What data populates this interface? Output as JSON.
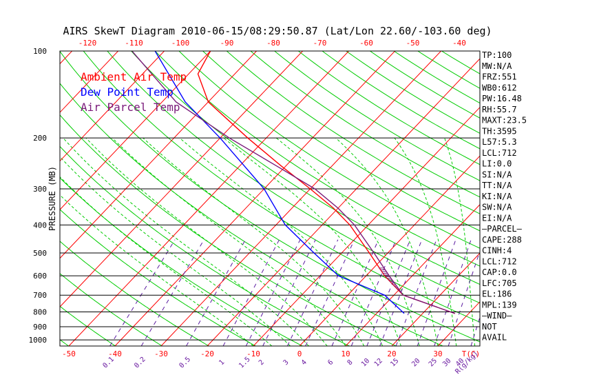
{
  "title": "AIRS SkewT Diagram 2010-06-15/08:29:50.87 (Lat/Lon 22.60/-103.60 deg)",
  "colors": {
    "frame": "#000000",
    "isotherm": "#ff0000",
    "dry_adiabat": "#00cc00",
    "moist_adiabat": "#00cc00",
    "mixing_ratio": "#5a1aa0",
    "ambient": "#ff0000",
    "dewpoint": "#0000ff",
    "parcel": "#7a1a7a",
    "temp_axis_labels": "#ff0000",
    "mixing_labels": "#6a1aa0"
  },
  "chart_data": {
    "type": "line",
    "title": "AIRS SkewT Diagram 2010-06-15/08:29:50.87 (Lat/Lon 22.60/-103.60 deg)",
    "ylabel": "PRESSURE (MB)",
    "xlabel": "T(C)",
    "y_scale": "log",
    "y_inverted": true,
    "ylim": [
      1050,
      100
    ],
    "pressure_ticks": [
      "100",
      "200",
      "300",
      "400",
      "500",
      "600",
      "700",
      "800",
      "900",
      "1000"
    ],
    "bottom_temp_ticks": [
      "-50",
      "-40",
      "-30",
      "-20",
      "-10",
      "0",
      "10",
      "20",
      "30",
      "T(C)"
    ],
    "top_temp_ticks": [
      "-120",
      "-110",
      "-100",
      "-90",
      "-80",
      "-70",
      "-60",
      "-50",
      "-40"
    ],
    "mixing_ratio_ticks": [
      "0.1",
      "0.2",
      "0.5",
      "1",
      "1.5",
      "2",
      "3",
      "4",
      "6",
      "8",
      "10",
      "12",
      "15",
      "20",
      "25",
      "30",
      "40",
      "R(g/kg)"
    ],
    "legend": [
      "Ambient Air Temp",
      "Dew Point Temp",
      "Air Parcel Temp"
    ],
    "series": [
      {
        "name": "Ambient Air Temp",
        "points": [
          [
            810,
            27
          ],
          [
            700,
            12
          ],
          [
            600,
            4
          ],
          [
            500,
            -4
          ],
          [
            400,
            -14
          ],
          [
            350,
            -21
          ],
          [
            300,
            -30
          ],
          [
            250,
            -41
          ],
          [
            200,
            -54
          ],
          [
            150,
            -70
          ],
          [
            120,
            -78
          ],
          [
            100,
            -80
          ]
        ]
      },
      {
        "name": "Dew Point Temp",
        "points": [
          [
            810,
            16
          ],
          [
            700,
            8
          ],
          [
            600,
            -6
          ],
          [
            500,
            -16
          ],
          [
            400,
            -28
          ],
          [
            300,
            -40
          ],
          [
            250,
            -49
          ],
          [
            200,
            -60
          ],
          [
            150,
            -75
          ],
          [
            100,
            -92
          ]
        ]
      },
      {
        "name": "Air Parcel Temp",
        "points": [
          [
            810,
            27
          ],
          [
            700,
            12
          ],
          [
            600,
            5
          ],
          [
            500,
            -3
          ],
          [
            400,
            -13
          ],
          [
            350,
            -20
          ],
          [
            300,
            -29
          ],
          [
            250,
            -42
          ],
          [
            200,
            -58
          ],
          [
            150,
            -77
          ],
          [
            100,
            -97
          ]
        ]
      }
    ]
  },
  "indices": [
    "TP:100",
    "MW:N/A",
    "FRZ:551",
    "WB0:612",
    "PW:16.48",
    "RH:55.7",
    "MAXT:23.5",
    "TH:3595",
    "L57:5.3",
    "LCL:712",
    "LI:0.0",
    "SI:N/A",
    "TT:N/A",
    "KI:N/A",
    "SW:N/A",
    "EI:N/A",
    "–PARCEL–",
    "CAPE:288",
    "CINH:4",
    "LCL:712",
    "CAP:0.0",
    "LFC:705",
    "EL:186",
    "MPL:139",
    "–WIND–",
    "NOT",
    "AVAIL"
  ]
}
